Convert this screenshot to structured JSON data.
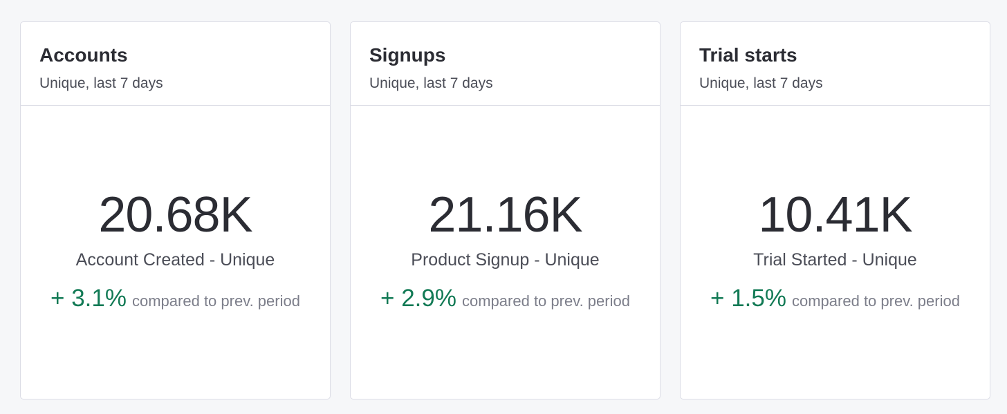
{
  "cards": [
    {
      "title": "Accounts",
      "subtitle": "Unique, last 7 days",
      "value": "20.68K",
      "label": "Account Created - Unique",
      "change": "+ 3.1%",
      "comparison": "compared to prev. period"
    },
    {
      "title": "Signups",
      "subtitle": "Unique, last 7 days",
      "value": "21.16K",
      "label": "Product Signup - Unique",
      "change": "+ 2.9%",
      "comparison": "compared to prev. period"
    },
    {
      "title": "Trial starts",
      "subtitle": "Unique, last 7 days",
      "value": "10.41K",
      "label": "Trial Started - Unique",
      "change": "+ 1.5%",
      "comparison": "compared to prev. period"
    }
  ]
}
